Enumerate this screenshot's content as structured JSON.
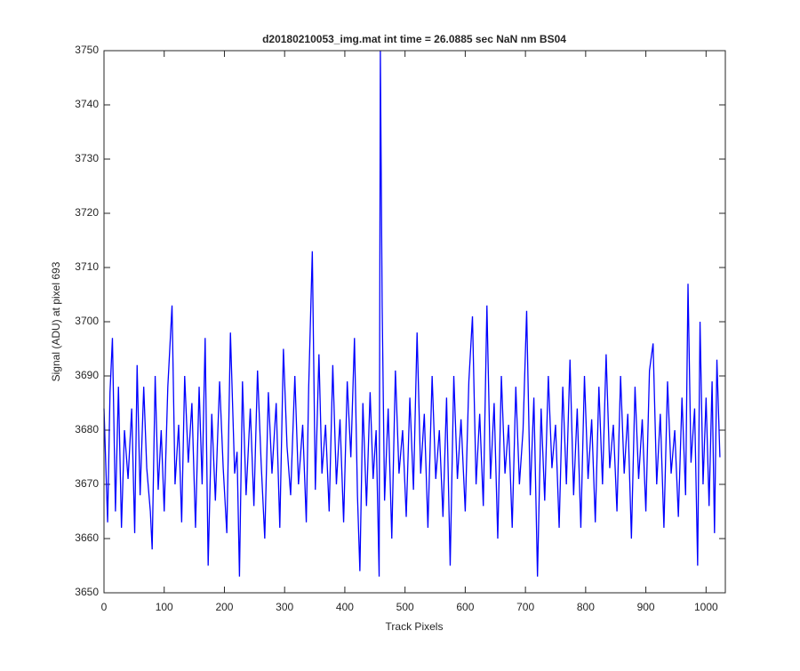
{
  "chart_data": {
    "type": "line",
    "title": "d20180210053_img.mat int time = 26.0885 sec  NaN nm BS04",
    "xlabel": "Track Pixels",
    "ylabel": "Signal (ADU) at pixel 693",
    "xlim": [
      0,
      1032
    ],
    "xticks": [
      0,
      100,
      200,
      300,
      400,
      500,
      600,
      700,
      800,
      900,
      1000
    ],
    "ylim": [
      3650,
      3750
    ],
    "yticks": [
      3650,
      3660,
      3670,
      3680,
      3690,
      3700,
      3710,
      3720,
      3730,
      3740,
      3750
    ],
    "grid": false,
    "series": [
      {
        "color": "#0000ff",
        "x": [
          0,
          6,
          10,
          14,
          19,
          24,
          29,
          34,
          40,
          46,
          51,
          55,
          60,
          66,
          71,
          77,
          80,
          85,
          90,
          95,
          100,
          106,
          113,
          118,
          124,
          129,
          134,
          140,
          146,
          152,
          158,
          163,
          168,
          173,
          179,
          185,
          192,
          198,
          204,
          210,
          217,
          221,
          225,
          230,
          236,
          243,
          249,
          255,
          261,
          267,
          273,
          279,
          286,
          292,
          298,
          304,
          310,
          317,
          323,
          330,
          336,
          340,
          346,
          351,
          357,
          362,
          368,
          374,
          380,
          386,
          392,
          398,
          404,
          410,
          416,
          421,
          425,
          430,
          436,
          442,
          447,
          452,
          457,
          459,
          462,
          466,
          472,
          478,
          484,
          490,
          496,
          502,
          508,
          514,
          520,
          526,
          532,
          538,
          545,
          551,
          557,
          563,
          569,
          575,
          581,
          587,
          593,
          600,
          606,
          612,
          618,
          624,
          630,
          636,
          642,
          648,
          654,
          660,
          666,
          672,
          678,
          684,
          690,
          696,
          702,
          708,
          714,
          720,
          726,
          732,
          738,
          744,
          750,
          756,
          762,
          768,
          774,
          780,
          786,
          792,
          798,
          804,
          810,
          816,
          822,
          828,
          834,
          840,
          846,
          852,
          858,
          864,
          870,
          876,
          882,
          888,
          894,
          900,
          906,
          912,
          918,
          924,
          930,
          936,
          942,
          948,
          954,
          960,
          966,
          970,
          975,
          981,
          986,
          990,
          995,
          1000,
          1005,
          1010,
          1014,
          1018,
          1023
        ],
        "values": [
          3684,
          3663,
          3687,
          3697,
          3665,
          3688,
          3662,
          3680,
          3671,
          3684,
          3661,
          3692,
          3668,
          3688,
          3673,
          3665,
          3658,
          3690,
          3669,
          3680,
          3665,
          3688,
          3703,
          3670,
          3681,
          3663,
          3690,
          3674,
          3685,
          3662,
          3688,
          3670,
          3697,
          3655,
          3683,
          3667,
          3689,
          3673,
          3661,
          3698,
          3672,
          3676,
          3653,
          3689,
          3668,
          3684,
          3666,
          3691,
          3674,
          3660,
          3687,
          3672,
          3685,
          3662,
          3695,
          3677,
          3668,
          3690,
          3670,
          3681,
          3663,
          3688,
          3713,
          3669,
          3694,
          3672,
          3681,
          3665,
          3692,
          3670,
          3682,
          3663,
          3689,
          3675,
          3697,
          3668,
          3654,
          3685,
          3666,
          3687,
          3671,
          3680,
          3653,
          3750,
          3703,
          3667,
          3684,
          3660,
          3691,
          3672,
          3680,
          3664,
          3686,
          3669,
          3698,
          3672,
          3683,
          3662,
          3690,
          3671,
          3680,
          3664,
          3686,
          3655,
          3690,
          3671,
          3682,
          3665,
          3689,
          3701,
          3670,
          3683,
          3666,
          3703,
          3671,
          3685,
          3660,
          3690,
          3672,
          3681,
          3662,
          3688,
          3670,
          3680,
          3702,
          3668,
          3686,
          3653,
          3684,
          3667,
          3690,
          3673,
          3681,
          3662,
          3688,
          3670,
          3693,
          3668,
          3684,
          3662,
          3690,
          3671,
          3682,
          3663,
          3688,
          3670,
          3694,
          3673,
          3681,
          3665,
          3690,
          3672,
          3683,
          3660,
          3688,
          3671,
          3682,
          3665,
          3691,
          3696,
          3670,
          3683,
          3662,
          3689,
          3672,
          3680,
          3664,
          3686,
          3668,
          3707,
          3674,
          3684,
          3655,
          3700,
          3670,
          3686,
          3666,
          3689,
          3661,
          3693,
          3675
        ]
      }
    ]
  }
}
